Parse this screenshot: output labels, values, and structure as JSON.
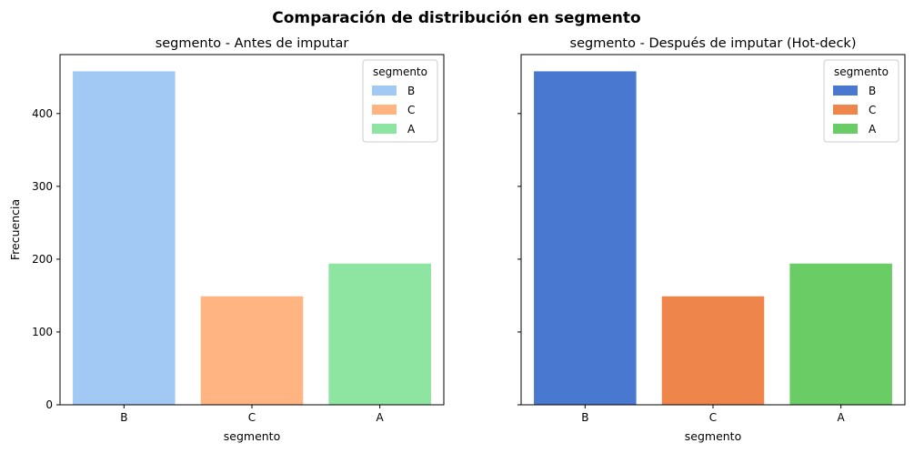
{
  "suptitle": "Comparación de distribución en segmento",
  "chart_data": [
    {
      "type": "bar",
      "title": "segmento - Antes de imputar",
      "xlabel": "segmento",
      "ylabel": "Frecuencia",
      "categories": [
        "B",
        "C",
        "A"
      ],
      "values": [
        458,
        149,
        194
      ],
      "colors": [
        "#a1c9f4",
        "#ffb482",
        "#8de5a1"
      ],
      "ylim": [
        0,
        481
      ],
      "yticks": [
        0,
        100,
        200,
        300,
        400
      ],
      "legend": {
        "title": "segmento",
        "position": "top-right",
        "entries": [
          "B",
          "C",
          "A"
        ]
      },
      "grid": false
    },
    {
      "type": "bar",
      "title": "segmento - Después de imputar (Hot-deck)",
      "xlabel": "segmento",
      "ylabel": "",
      "categories": [
        "B",
        "C",
        "A"
      ],
      "values": [
        458,
        149,
        194
      ],
      "colors": [
        "#4878d0",
        "#ee854a",
        "#6acc64"
      ],
      "ylim": [
        0,
        481
      ],
      "yticks": [
        0,
        100,
        200,
        300,
        400
      ],
      "shared_y": true,
      "legend": {
        "title": "segmento",
        "position": "top-right",
        "entries": [
          "B",
          "C",
          "A"
        ]
      },
      "grid": false
    }
  ]
}
